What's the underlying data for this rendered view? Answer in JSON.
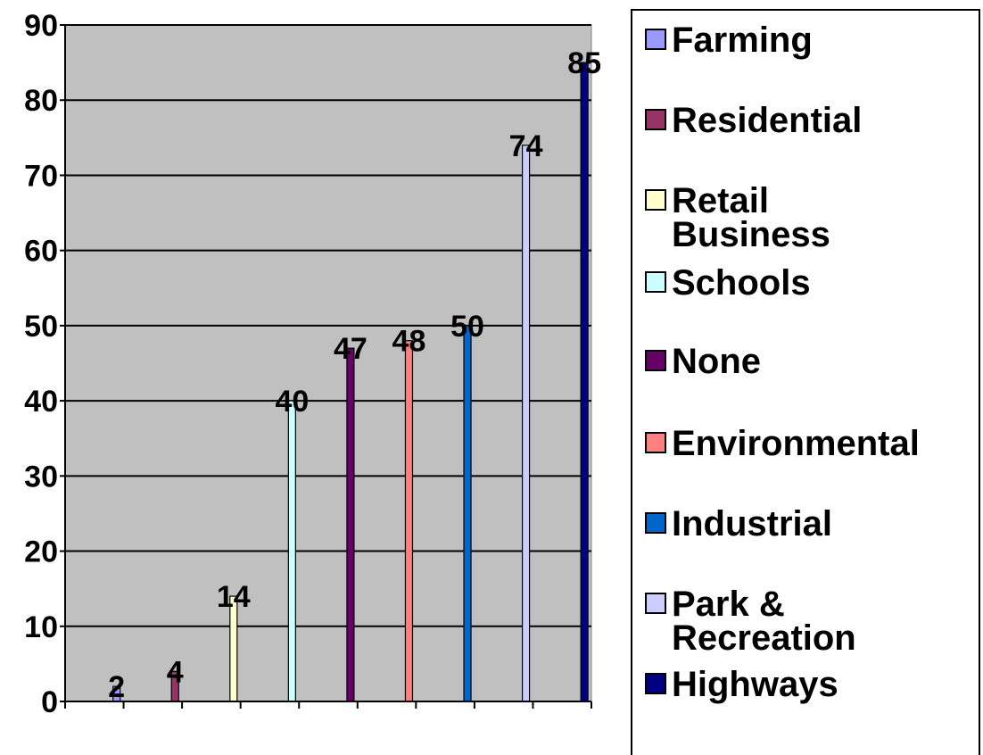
{
  "chart_data": {
    "type": "bar",
    "categories": [
      "Farming",
      "Residential",
      "Retail Business",
      "Schools",
      "None",
      "Environmental",
      "Industrial",
      "Park & Recreation",
      "Highways"
    ],
    "values": [
      2,
      4,
      14,
      40,
      47,
      48,
      50,
      74,
      85
    ],
    "colors": [
      "#9999ff",
      "#993366",
      "#ffffcc",
      "#ccffff",
      "#660066",
      "#ff8080",
      "#0066cc",
      "#ccccff",
      "#000080"
    ],
    "ylim": [
      0,
      90
    ],
    "yticks": [
      "0",
      "10",
      "20",
      "30",
      "40",
      "50",
      "60",
      "70",
      "80",
      "90"
    ],
    "grid": true,
    "plot_background": "#c0c0c0",
    "legend_position": "right"
  }
}
